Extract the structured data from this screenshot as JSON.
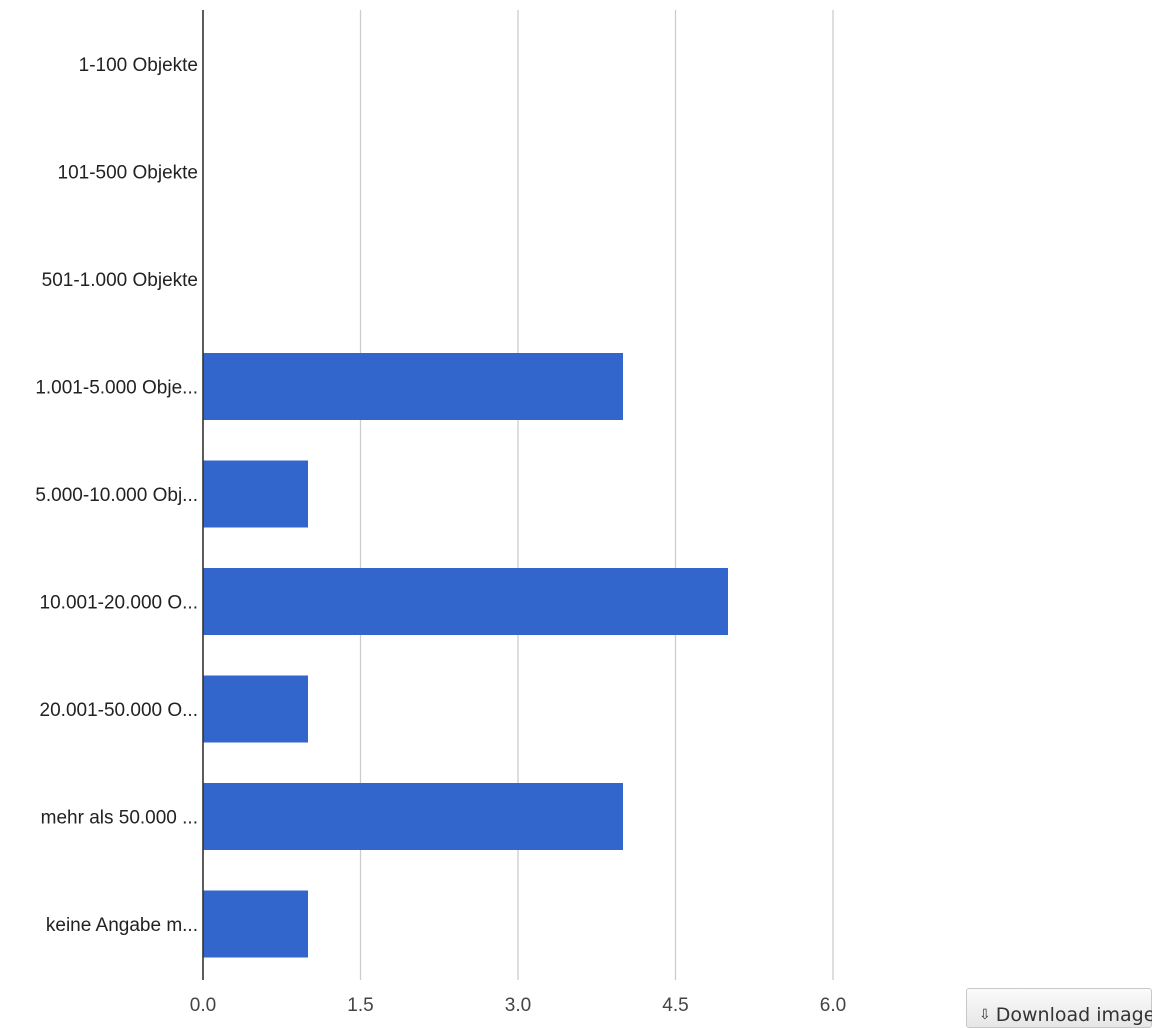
{
  "chart_data": {
    "type": "bar",
    "orientation": "horizontal",
    "categories": [
      "1-100 Objekte",
      "101-500 Objekte",
      "501-1.000 Objekte",
      "1.001-5.000 Obje...",
      "5.000-10.000 Obj...",
      "10.001-20.000 O...",
      "20.001-50.000 O...",
      "mehr als 50.000 ...",
      "keine Angabe m..."
    ],
    "values": [
      0,
      0,
      0,
      4,
      1,
      5,
      1,
      4,
      1
    ],
    "xticks": [
      "0.0",
      "1.5",
      "3.0",
      "4.5",
      "6.0"
    ],
    "xlim": [
      0,
      6
    ],
    "grid": true,
    "title": "",
    "xlabel": "",
    "ylabel": "",
    "bar_color": "#3366cc",
    "grid_color": "#cccccc",
    "axis_color": "#333333"
  },
  "download": {
    "label": "Download image",
    "icon": "download-arrow-icon"
  }
}
